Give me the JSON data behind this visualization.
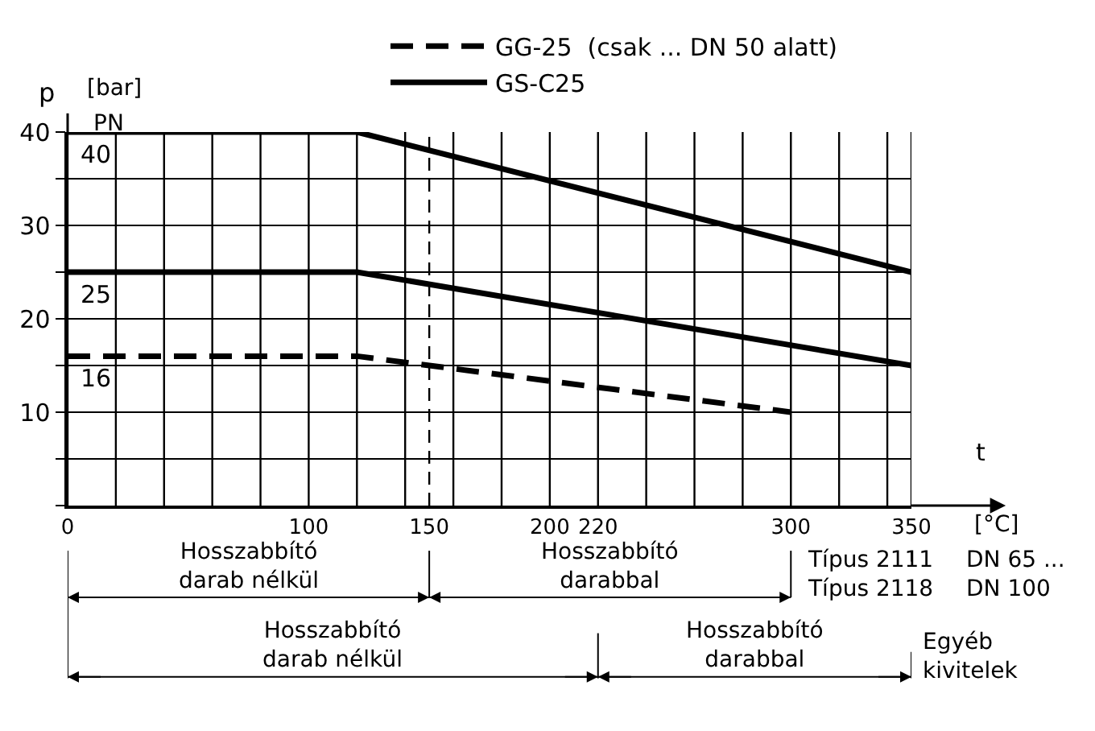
{
  "chart_data": {
    "type": "line",
    "xlabel": "t",
    "ylabel": "p",
    "xlim": [
      0,
      350
    ],
    "ylim": [
      0,
      40
    ],
    "xticks": [
      0,
      {
        "value": 20,
        "label": null
      },
      {
        "value": 40,
        "label": null
      },
      {
        "value": 60,
        "label": null
      },
      {
        "value": 80,
        "label": null
      },
      100,
      {
        "value": 120,
        "label": null
      },
      {
        "value": 140,
        "label": null
      },
      150,
      {
        "value": 160,
        "label": null
      },
      {
        "value": 180,
        "label": null
      },
      200,
      220,
      {
        "value": 240,
        "label": null
      },
      {
        "value": 260,
        "label": null
      },
      {
        "value": 280,
        "label": null
      },
      300,
      {
        "value": 320,
        "label": null
      },
      {
        "value": 340,
        "label": null
      },
      350
    ],
    "yticks": [
      {
        "value": 0,
        "label": null
      },
      {
        "value": 5,
        "label": null
      },
      10,
      {
        "value": 15,
        "label": null
      },
      20,
      {
        "value": 25,
        "label": null
      },
      30,
      {
        "value": 35,
        "label": null
      },
      40
    ],
    "grid": true,
    "legend": "top",
    "marker": "none",
    "series": [
      {
        "name": "GG-25  (csak ... DN 50 alatt)",
        "color": "#000000",
        "line_style": "dashed",
        "x": [
          0,
          120,
          300
        ],
        "values": [
          16,
          16,
          10
        ]
      },
      {
        "name": "GS-C25",
        "color": "#000000",
        "line_style": "solid",
        "x": [
          0,
          120,
          350
        ],
        "values": [
          40,
          40,
          25
        ]
      },
      {
        "color": "#000000",
        "line_style": "solid",
        "x": [
          0,
          120,
          350
        ],
        "values": [
          25,
          25,
          15
        ]
      }
    ],
    "ref_lines": [
      {
        "axis": "x",
        "value": 150,
        "color": "#000000",
        "line_style": "dashed"
      }
    ],
    "annotations": [
      "[bar]",
      "PN",
      {
        "text": "40",
        "y": 40
      },
      {
        "text": "25",
        "y": 25
      },
      {
        "text": "16",
        "y": 16
      },
      "[°C]",
      "Hosszabbító\ndarab nélkül",
      "Hosszabbító\ndarabbal",
      "Típus 2111\nTípus 2118",
      "DN 65 ...\nDN 100",
      "Hosszabbító\ndarab nélkül",
      "Hosszabbító\ndarabbal",
      "Egyéb\nkivitelek"
    ]
  }
}
